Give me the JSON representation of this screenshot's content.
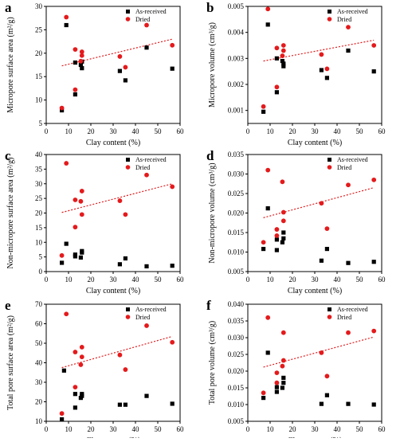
{
  "legend": {
    "as_received": "As-received",
    "dried": "Dried"
  },
  "colors": {
    "as_received": "#000000",
    "dried": "#e41a1c",
    "trend": "#e41a1c"
  },
  "chart_data": [
    {
      "panel": "a",
      "type": "scatter",
      "xlabel": "Clay content (%)",
      "ylabel": "Micropore surface area (m²/g)",
      "xlim": [
        0,
        60
      ],
      "ylim": [
        5,
        30
      ],
      "xticks": [
        0,
        10,
        20,
        30,
        40,
        50,
        60
      ],
      "yticks": [
        5,
        10,
        15,
        20,
        25,
        30
      ],
      "legend_position": "top-right",
      "series": [
        {
          "name": "As-received",
          "marker": "square",
          "x": [
            7,
            9,
            13,
            13,
            15.5,
            16,
            16,
            33,
            35.5,
            45,
            56.5
          ],
          "y": [
            7.8,
            26,
            18,
            11.2,
            17.5,
            16.8,
            18.2,
            16.2,
            14.2,
            21.2,
            16.7
          ]
        },
        {
          "name": "Dried",
          "marker": "circle",
          "x": [
            7,
            9,
            13,
            13,
            15.5,
            16,
            16,
            33,
            35.5,
            45,
            56.5
          ],
          "y": [
            8.3,
            27.7,
            20.8,
            12.2,
            18.3,
            20.3,
            19.5,
            19.3,
            17,
            26,
            21.7
          ]
        }
      ],
      "trendline": {
        "series": "Dried",
        "x": [
          7,
          56.5
        ],
        "y": [
          17.3,
          23
        ]
      }
    },
    {
      "panel": "b",
      "type": "scatter",
      "xlabel": "Clay content (%)",
      "ylabel": "Micropore volume (cm³/g)",
      "xlim": [
        0,
        60
      ],
      "ylim": [
        0.0005,
        0.005
      ],
      "xticks": [
        0,
        10,
        20,
        30,
        40,
        50,
        60
      ],
      "yticks": [
        0.001,
        0.002,
        0.003,
        0.004,
        0.005
      ],
      "ytick_labels": [
        "0.001",
        "0.002",
        "0.003",
        "0.004",
        "0.005"
      ],
      "legend_position": "top-right",
      "series": [
        {
          "name": "As-received",
          "marker": "square",
          "x": [
            7,
            9,
            13,
            13,
            15.5,
            16,
            16,
            33,
            35.5,
            45,
            56.5
          ],
          "y": [
            0.00095,
            0.0043,
            0.003,
            0.0017,
            0.0029,
            0.0027,
            0.0028,
            0.00255,
            0.00225,
            0.0033,
            0.0025
          ]
        },
        {
          "name": "Dried",
          "marker": "circle",
          "x": [
            7,
            9,
            13,
            13,
            15.5,
            16,
            16,
            33,
            35.5,
            45,
            56.5
          ],
          "y": [
            0.00115,
            0.0049,
            0.0034,
            0.0019,
            0.0031,
            0.0035,
            0.0033,
            0.00315,
            0.0026,
            0.0042,
            0.0035
          ]
        }
      ],
      "trendline": {
        "series": "Dried",
        "x": [
          7,
          56.5
        ],
        "y": [
          0.0029,
          0.0037
        ]
      }
    },
    {
      "panel": "c",
      "type": "scatter",
      "xlabel": "Clay content (%)",
      "ylabel": "Non-micropore surface area (m²/g)",
      "xlim": [
        0,
        60
      ],
      "ylim": [
        0,
        40
      ],
      "xticks": [
        0,
        10,
        20,
        30,
        40,
        50,
        60
      ],
      "yticks": [
        0,
        5,
        10,
        15,
        20,
        25,
        30,
        35,
        40
      ],
      "legend_position": "top-right",
      "series": [
        {
          "name": "As-received",
          "marker": "square",
          "x": [
            7,
            9,
            13,
            13,
            15.5,
            16,
            16,
            33,
            35.5,
            45,
            56.5
          ],
          "y": [
            3,
            9.5,
            5.8,
            5.2,
            4.8,
            6.5,
            7,
            2.5,
            4.5,
            1.8,
            2
          ]
        },
        {
          "name": "Dried",
          "marker": "circle",
          "x": [
            7,
            9,
            13,
            13,
            15.5,
            16,
            16,
            33,
            35.5,
            45,
            56.5
          ],
          "y": [
            5.5,
            37,
            24.5,
            15.2,
            24,
            27.5,
            19.5,
            24.2,
            19.5,
            33,
            29
          ]
        }
      ],
      "trendline": {
        "series": "Dried",
        "x": [
          7,
          56.5
        ],
        "y": [
          20.2,
          30
        ]
      }
    },
    {
      "panel": "d",
      "type": "scatter",
      "xlabel": "Clay content (%)",
      "ylabel": "Non-micropore volume (cm³/g)",
      "xlim": [
        0,
        60
      ],
      "ylim": [
        0.005,
        0.035
      ],
      "xticks": [
        0,
        10,
        20,
        30,
        40,
        50,
        60
      ],
      "yticks": [
        0.005,
        0.01,
        0.015,
        0.02,
        0.025,
        0.03,
        0.035
      ],
      "ytick_labels": [
        "0.005",
        "0.010",
        "0.015",
        "0.020",
        "0.025",
        "0.030",
        "0.035"
      ],
      "legend_position": "top-right",
      "series": [
        {
          "name": "As-received",
          "marker": "square",
          "x": [
            7,
            9,
            13,
            13,
            15.5,
            16,
            16,
            33,
            35.5,
            45,
            56.5
          ],
          "y": [
            0.0108,
            0.0212,
            0.0132,
            0.0105,
            0.0125,
            0.015,
            0.0135,
            0.0078,
            0.0108,
            0.0072,
            0.0075
          ]
        },
        {
          "name": "Dried",
          "marker": "circle",
          "x": [
            7,
            9,
            13,
            13,
            15.5,
            16,
            16,
            33,
            35.5,
            45,
            56.5
          ],
          "y": [
            0.0125,
            0.031,
            0.0158,
            0.0142,
            0.028,
            0.018,
            0.0202,
            0.0225,
            0.016,
            0.0272,
            0.0285
          ]
        }
      ],
      "trendline": {
        "series": "Dried",
        "x": [
          7,
          56.5
        ],
        "y": [
          0.0188,
          0.0265
        ]
      }
    },
    {
      "panel": "e",
      "type": "scatter",
      "xlabel": "Clay content (%)",
      "ylabel": "Total pore surface area (m²/g)",
      "xlim": [
        0,
        60
      ],
      "ylim": [
        10,
        70
      ],
      "xticks": [
        0,
        10,
        20,
        30,
        40,
        50,
        60
      ],
      "yticks": [
        10,
        20,
        30,
        40,
        50,
        60,
        70
      ],
      "legend_position": "top-right",
      "series": [
        {
          "name": "As-received",
          "marker": "square",
          "x": [
            7,
            8,
            13,
            13,
            15.5,
            16,
            16,
            33,
            35.5,
            45,
            56.5
          ],
          "y": [
            11,
            36,
            24,
            17,
            22,
            24,
            23,
            18.5,
            18.5,
            23,
            19
          ]
        },
        {
          "name": "Dried",
          "marker": "circle",
          "x": [
            7,
            9,
            13,
            13,
            15.5,
            16,
            16,
            33,
            35.5,
            45,
            56.5
          ],
          "y": [
            14,
            65,
            45.5,
            27.5,
            39,
            43,
            48,
            44,
            36.5,
            59,
            50.5
          ]
        }
      ],
      "trendline": {
        "series": "Dried",
        "x": [
          7,
          56.5
        ],
        "y": [
          37.5,
          53.5
        ]
      }
    },
    {
      "panel": "f",
      "type": "scatter",
      "xlabel": "Clay content (%)",
      "ylabel": "Total pore volume (cm³/g)",
      "xlim": [
        0,
        60
      ],
      "ylim": [
        0.005,
        0.04
      ],
      "xticks": [
        0,
        10,
        20,
        30,
        40,
        50,
        60
      ],
      "yticks": [
        0.005,
        0.01,
        0.015,
        0.02,
        0.025,
        0.03,
        0.035,
        0.04
      ],
      "ytick_labels": [
        "0.005",
        "0.010",
        "0.015",
        "0.020",
        "0.025",
        "0.030",
        "0.035",
        "0.040"
      ],
      "legend_position": "top-right",
      "series": [
        {
          "name": "As-received",
          "marker": "square",
          "x": [
            7,
            9,
            13,
            13,
            15.5,
            16,
            16,
            33,
            35.5,
            45,
            56.5
          ],
          "y": [
            0.012,
            0.0255,
            0.0138,
            0.0152,
            0.015,
            0.0165,
            0.018,
            0.0102,
            0.0128,
            0.0102,
            0.01
          ]
        },
        {
          "name": "Dried",
          "marker": "circle",
          "x": [
            7,
            9,
            13,
            13,
            15.5,
            16,
            16,
            33,
            35.5,
            45,
            56.5
          ],
          "y": [
            0.0135,
            0.036,
            0.0195,
            0.0165,
            0.0215,
            0.0232,
            0.0315,
            0.0255,
            0.0185,
            0.0315,
            0.032
          ]
        }
      ],
      "trendline": {
        "series": "Dried",
        "x": [
          7,
          56.5
        ],
        "y": [
          0.0212,
          0.0302
        ]
      }
    }
  ]
}
